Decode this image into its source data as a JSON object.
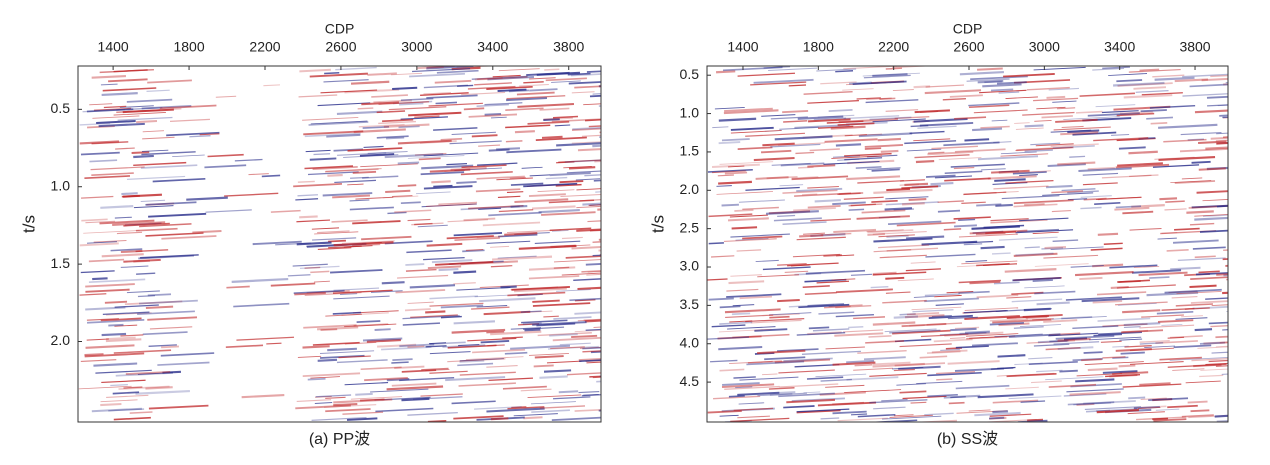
{
  "chart_data": [
    {
      "type": "seismic",
      "xlabel": "CDP",
      "ylabel": "t/s",
      "caption": "(a) PP波",
      "xlim": [
        1215,
        3970
      ],
      "xticks": [
        1400,
        1800,
        2200,
        2600,
        3000,
        3400,
        3800
      ],
      "ylim": [
        0.22,
        2.52
      ],
      "yticks": [
        {
          "value": 0.5,
          "label": "0.5"
        },
        {
          "value": 1.0,
          "label": "1.0"
        },
        {
          "value": 1.5,
          "label": "1.5"
        },
        {
          "value": 2.0,
          "label": "2.0"
        }
      ]
    },
    {
      "type": "seismic",
      "xlabel": "CDP",
      "ylabel": "t/s",
      "caption": "(b) SS波",
      "xlim": [
        1209,
        3975
      ],
      "xticks": [
        1400,
        1800,
        2200,
        2600,
        3000,
        3400,
        3800
      ],
      "ylim": [
        0.38,
        5.02
      ],
      "yticks": [
        {
          "value": 0.5,
          "label": "0.5"
        },
        {
          "value": 1.0,
          "label": "1.0"
        },
        {
          "value": 1.5,
          "label": "1.5"
        },
        {
          "value": 2.0,
          "label": "2.0"
        },
        {
          "value": 2.5,
          "label": "2.5"
        },
        {
          "value": 3.0,
          "label": "3.0"
        },
        {
          "value": 3.5,
          "label": "3.5"
        },
        {
          "value": 4.0,
          "label": "4.0"
        },
        {
          "value": 4.5,
          "label": "4.5"
        }
      ]
    }
  ]
}
